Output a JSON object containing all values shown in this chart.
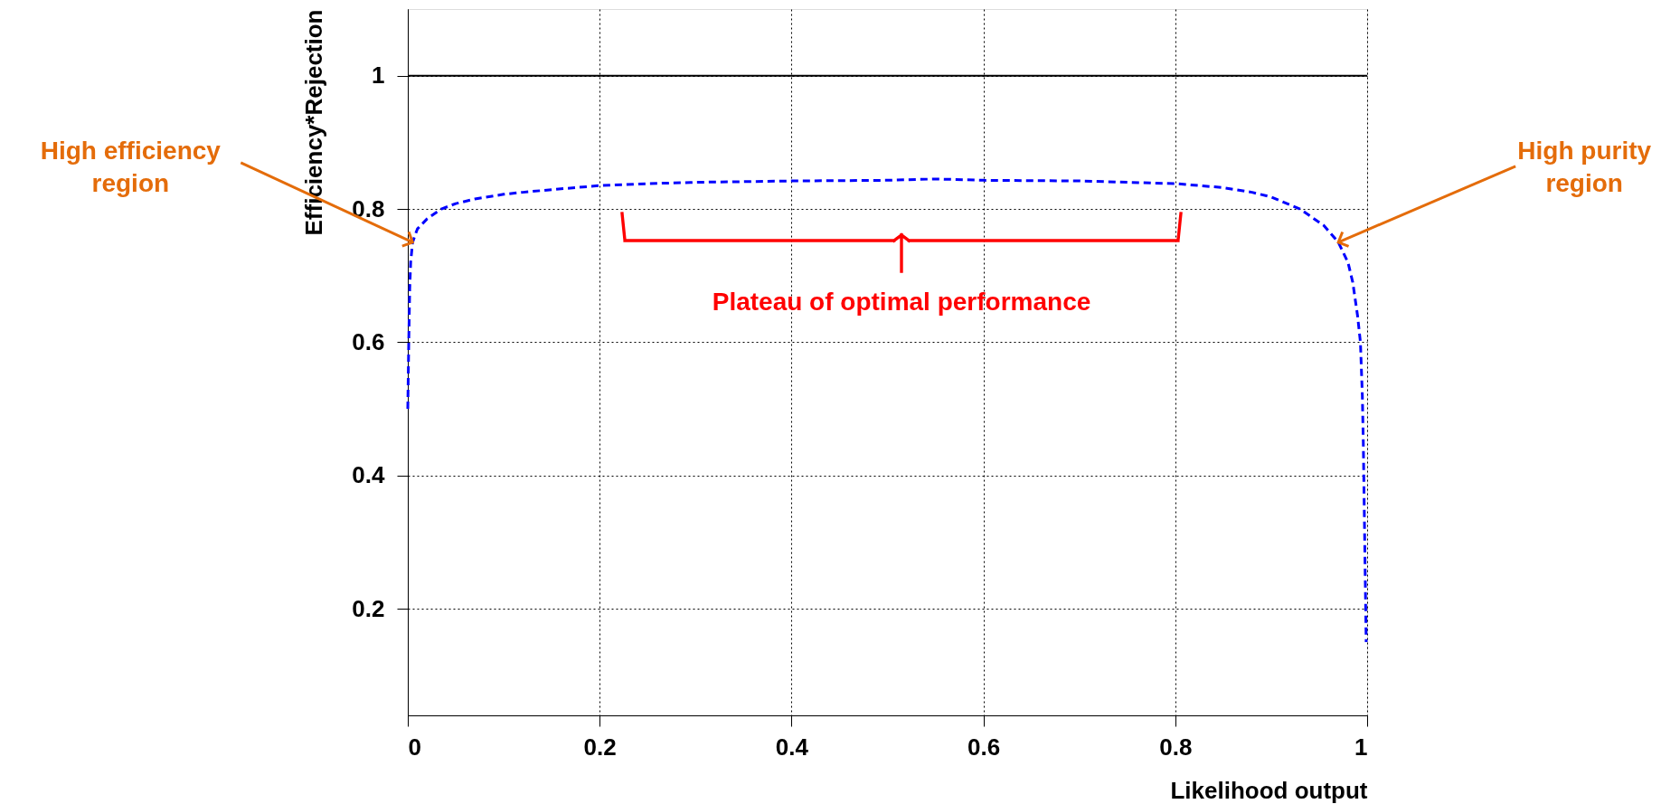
{
  "chart_data": {
    "type": "line",
    "xlabel": "Likelihood output",
    "ylabel": "Efficiency*Rejection",
    "x": [
      0.0,
      0.001,
      0.002,
      0.003,
      0.005,
      0.01,
      0.02,
      0.035,
      0.05,
      0.07,
      0.1,
      0.12,
      0.15,
      0.2,
      0.25,
      0.3,
      0.4,
      0.5,
      0.55,
      0.6,
      0.7,
      0.8,
      0.85,
      0.88,
      0.9,
      0.93,
      0.955,
      0.97,
      0.98,
      0.985,
      0.99,
      0.993,
      0.995,
      0.996,
      0.997,
      0.998,
      0.999
    ],
    "series": [
      {
        "color": "#0000ff",
        "values": [
          0.5,
          0.6,
          0.68,
          0.72,
          0.75,
          0.77,
          0.785,
          0.8,
          0.808,
          0.815,
          0.822,
          0.825,
          0.829,
          0.835,
          0.838,
          0.84,
          0.842,
          0.843,
          0.845,
          0.843,
          0.842,
          0.838,
          0.832,
          0.825,
          0.818,
          0.8,
          0.775,
          0.75,
          0.72,
          0.69,
          0.64,
          0.6,
          0.52,
          0.45,
          0.35,
          0.25,
          0.15
        ]
      }
    ],
    "xlim": [
      0,
      1
    ],
    "xticks": [
      0,
      0.2,
      0.4,
      0.6,
      0.8,
      1
    ],
    "ylim": [
      0.04,
      1.1
    ],
    "yticks": [
      0.2,
      0.4,
      0.6,
      0.8,
      1
    ],
    "ref_lines": [
      {
        "axis": "y",
        "value": 1,
        "color": "#000000"
      }
    ],
    "annotations": [
      {
        "text": "High efficiency\nregion",
        "x": 0.005,
        "y": 0.75
      },
      {
        "text": "High purity\nregion",
        "x": 0.97,
        "y": 0.75
      },
      "Plateau of optimal performance"
    ],
    "grid": true,
    "line_style": "dashed",
    "marker": "none"
  }
}
